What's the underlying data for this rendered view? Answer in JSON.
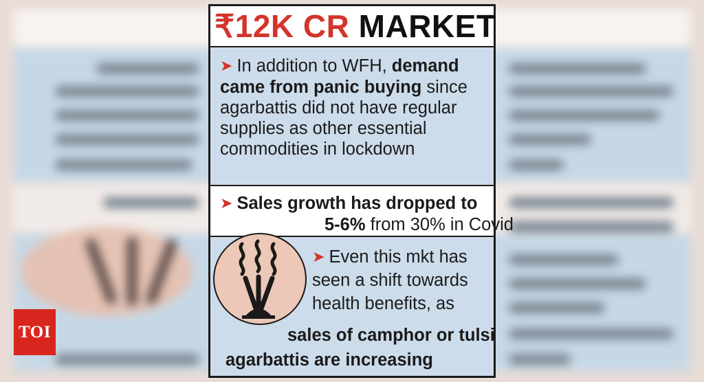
{
  "title": {
    "rupee": "₹12K CR",
    "rest": " MARKET"
  },
  "point1": {
    "text1": "In addition to WFH, ",
    "bold1": "demand",
    "bold2": "came from panic buying",
    "text2": " since",
    "text3": "agarbattis did not have regular",
    "text4": "supplies as other essential",
    "text5": "commodities in lockdown"
  },
  "point2": {
    "bold1": "Sales growth has dropped to",
    "bold2": "5-6%",
    "text1": " from 30% in Covid"
  },
  "point3": {
    "text1": "Even this mkt has",
    "text2": "seen a shift towards",
    "text3": "health benefits, as",
    "bold1": "sales of camphor or tulsi",
    "bold2": "agarbattis are increasing"
  },
  "arrow_glyph": "➤",
  "logo": "TOI",
  "icon": "incense-sticks-icon",
  "colors": {
    "accent": "#d3342b",
    "panel_blue": "#cddceb",
    "icon_circle": "#edc8b8",
    "logo_red": "#d8261f"
  }
}
